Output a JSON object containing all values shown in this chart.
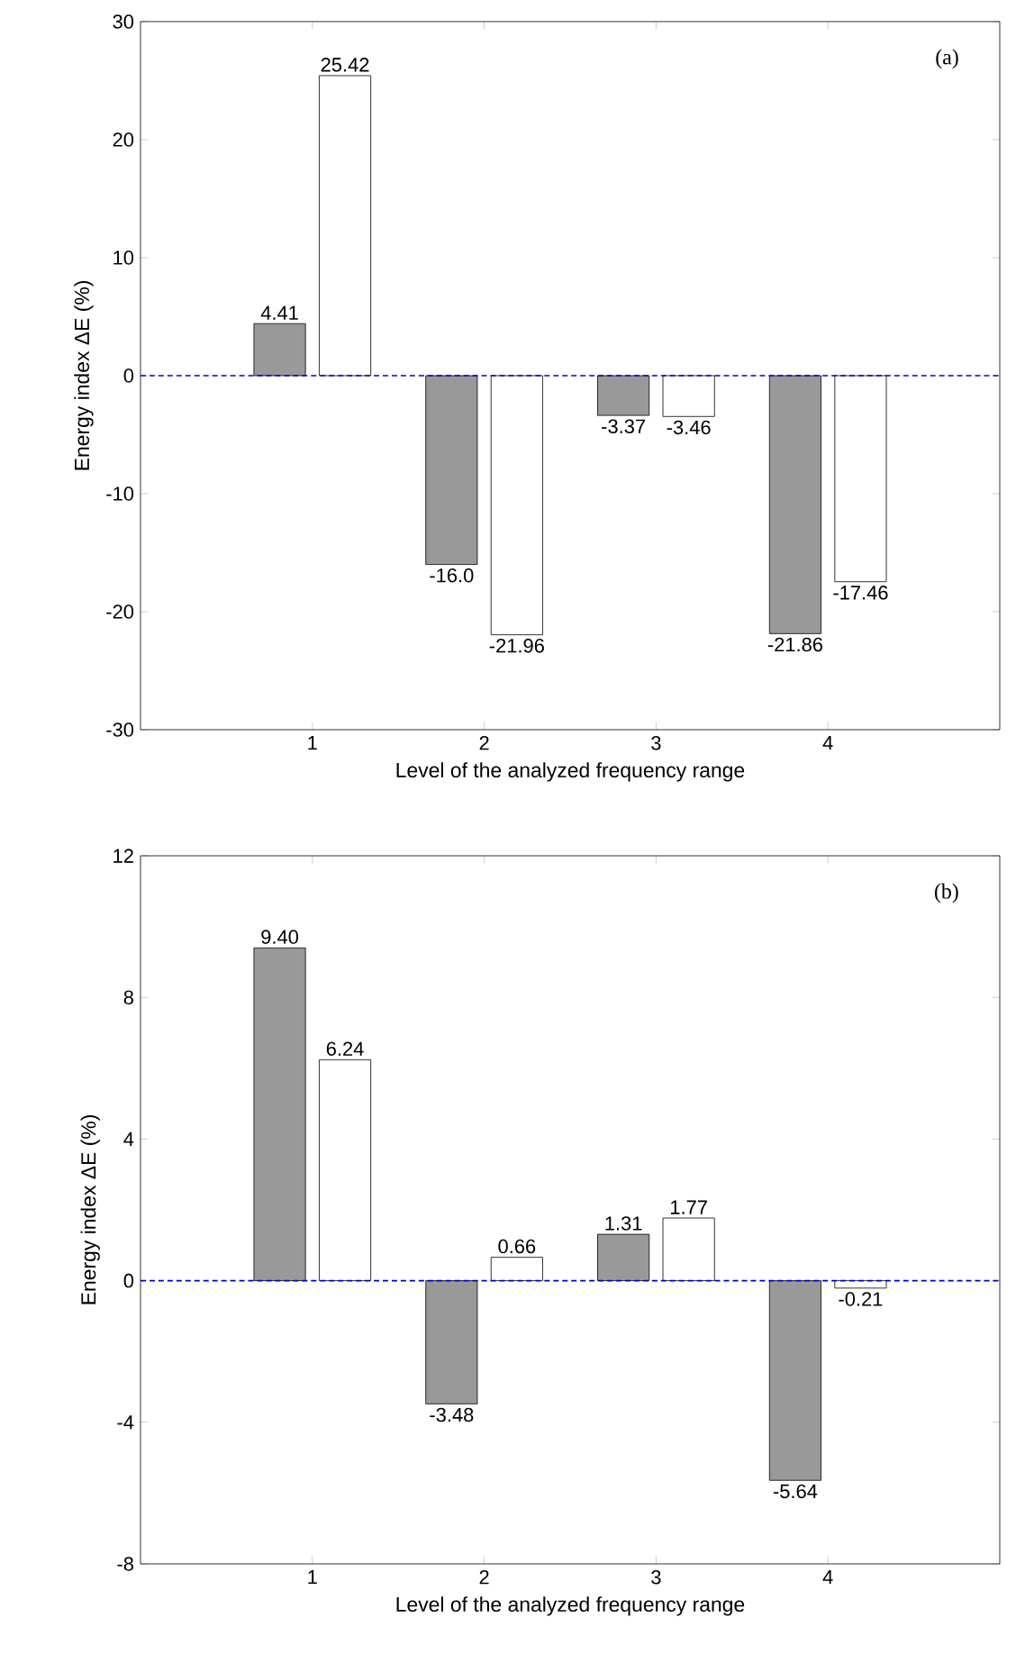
{
  "chart_data": [
    {
      "type": "bar",
      "xlabel": "Level of the analyzed frequency range",
      "ylabel": "Energy index ΔE (%)",
      "annotations": [
        "(a)"
      ],
      "categories": [
        "1",
        "2",
        "3",
        "4"
      ],
      "ylim": [
        -30,
        30
      ],
      "yticks": [
        -30,
        -20,
        -10,
        0,
        10,
        20,
        30
      ],
      "series": [
        {
          "color": "#999999",
          "values": [
            4.41,
            -16.0,
            -3.37,
            -21.86
          ],
          "value_labels": [
            "4.41",
            "-16.0",
            "-3.37",
            "-21.86"
          ]
        },
        {
          "color": "#ffffff",
          "values": [
            25.42,
            -21.96,
            -3.46,
            -17.46
          ],
          "value_labels": [
            "25.42",
            "-21.96",
            "-3.46",
            "-17.46"
          ]
        }
      ],
      "ref_lines": [
        {
          "axis": "y",
          "value": 0,
          "color": "#0000cc",
          "line_style": "dashed"
        }
      ]
    },
    {
      "type": "bar",
      "xlabel": "Level of the analyzed frequency range",
      "ylabel": "Energy index ΔE (%)",
      "annotations": [
        "(b)"
      ],
      "categories": [
        "1",
        "2",
        "3",
        "4"
      ],
      "ylim": [
        -8,
        12
      ],
      "yticks": [
        -8,
        -4,
        0,
        4,
        8,
        12
      ],
      "series": [
        {
          "color": "#999999",
          "values": [
            9.4,
            -3.48,
            1.31,
            -5.64
          ],
          "value_labels": [
            "9.40",
            "-3.48",
            "1.31",
            "-5.64"
          ]
        },
        {
          "color": "#ffffff",
          "values": [
            6.24,
            0.66,
            1.77,
            -0.21
          ],
          "value_labels": [
            "6.24",
            "0.66",
            "1.77",
            "-0.21"
          ]
        }
      ],
      "ref_lines": [
        {
          "axis": "y",
          "value": 0,
          "color": "#0000cc",
          "line_style": "dashed"
        }
      ]
    }
  ]
}
